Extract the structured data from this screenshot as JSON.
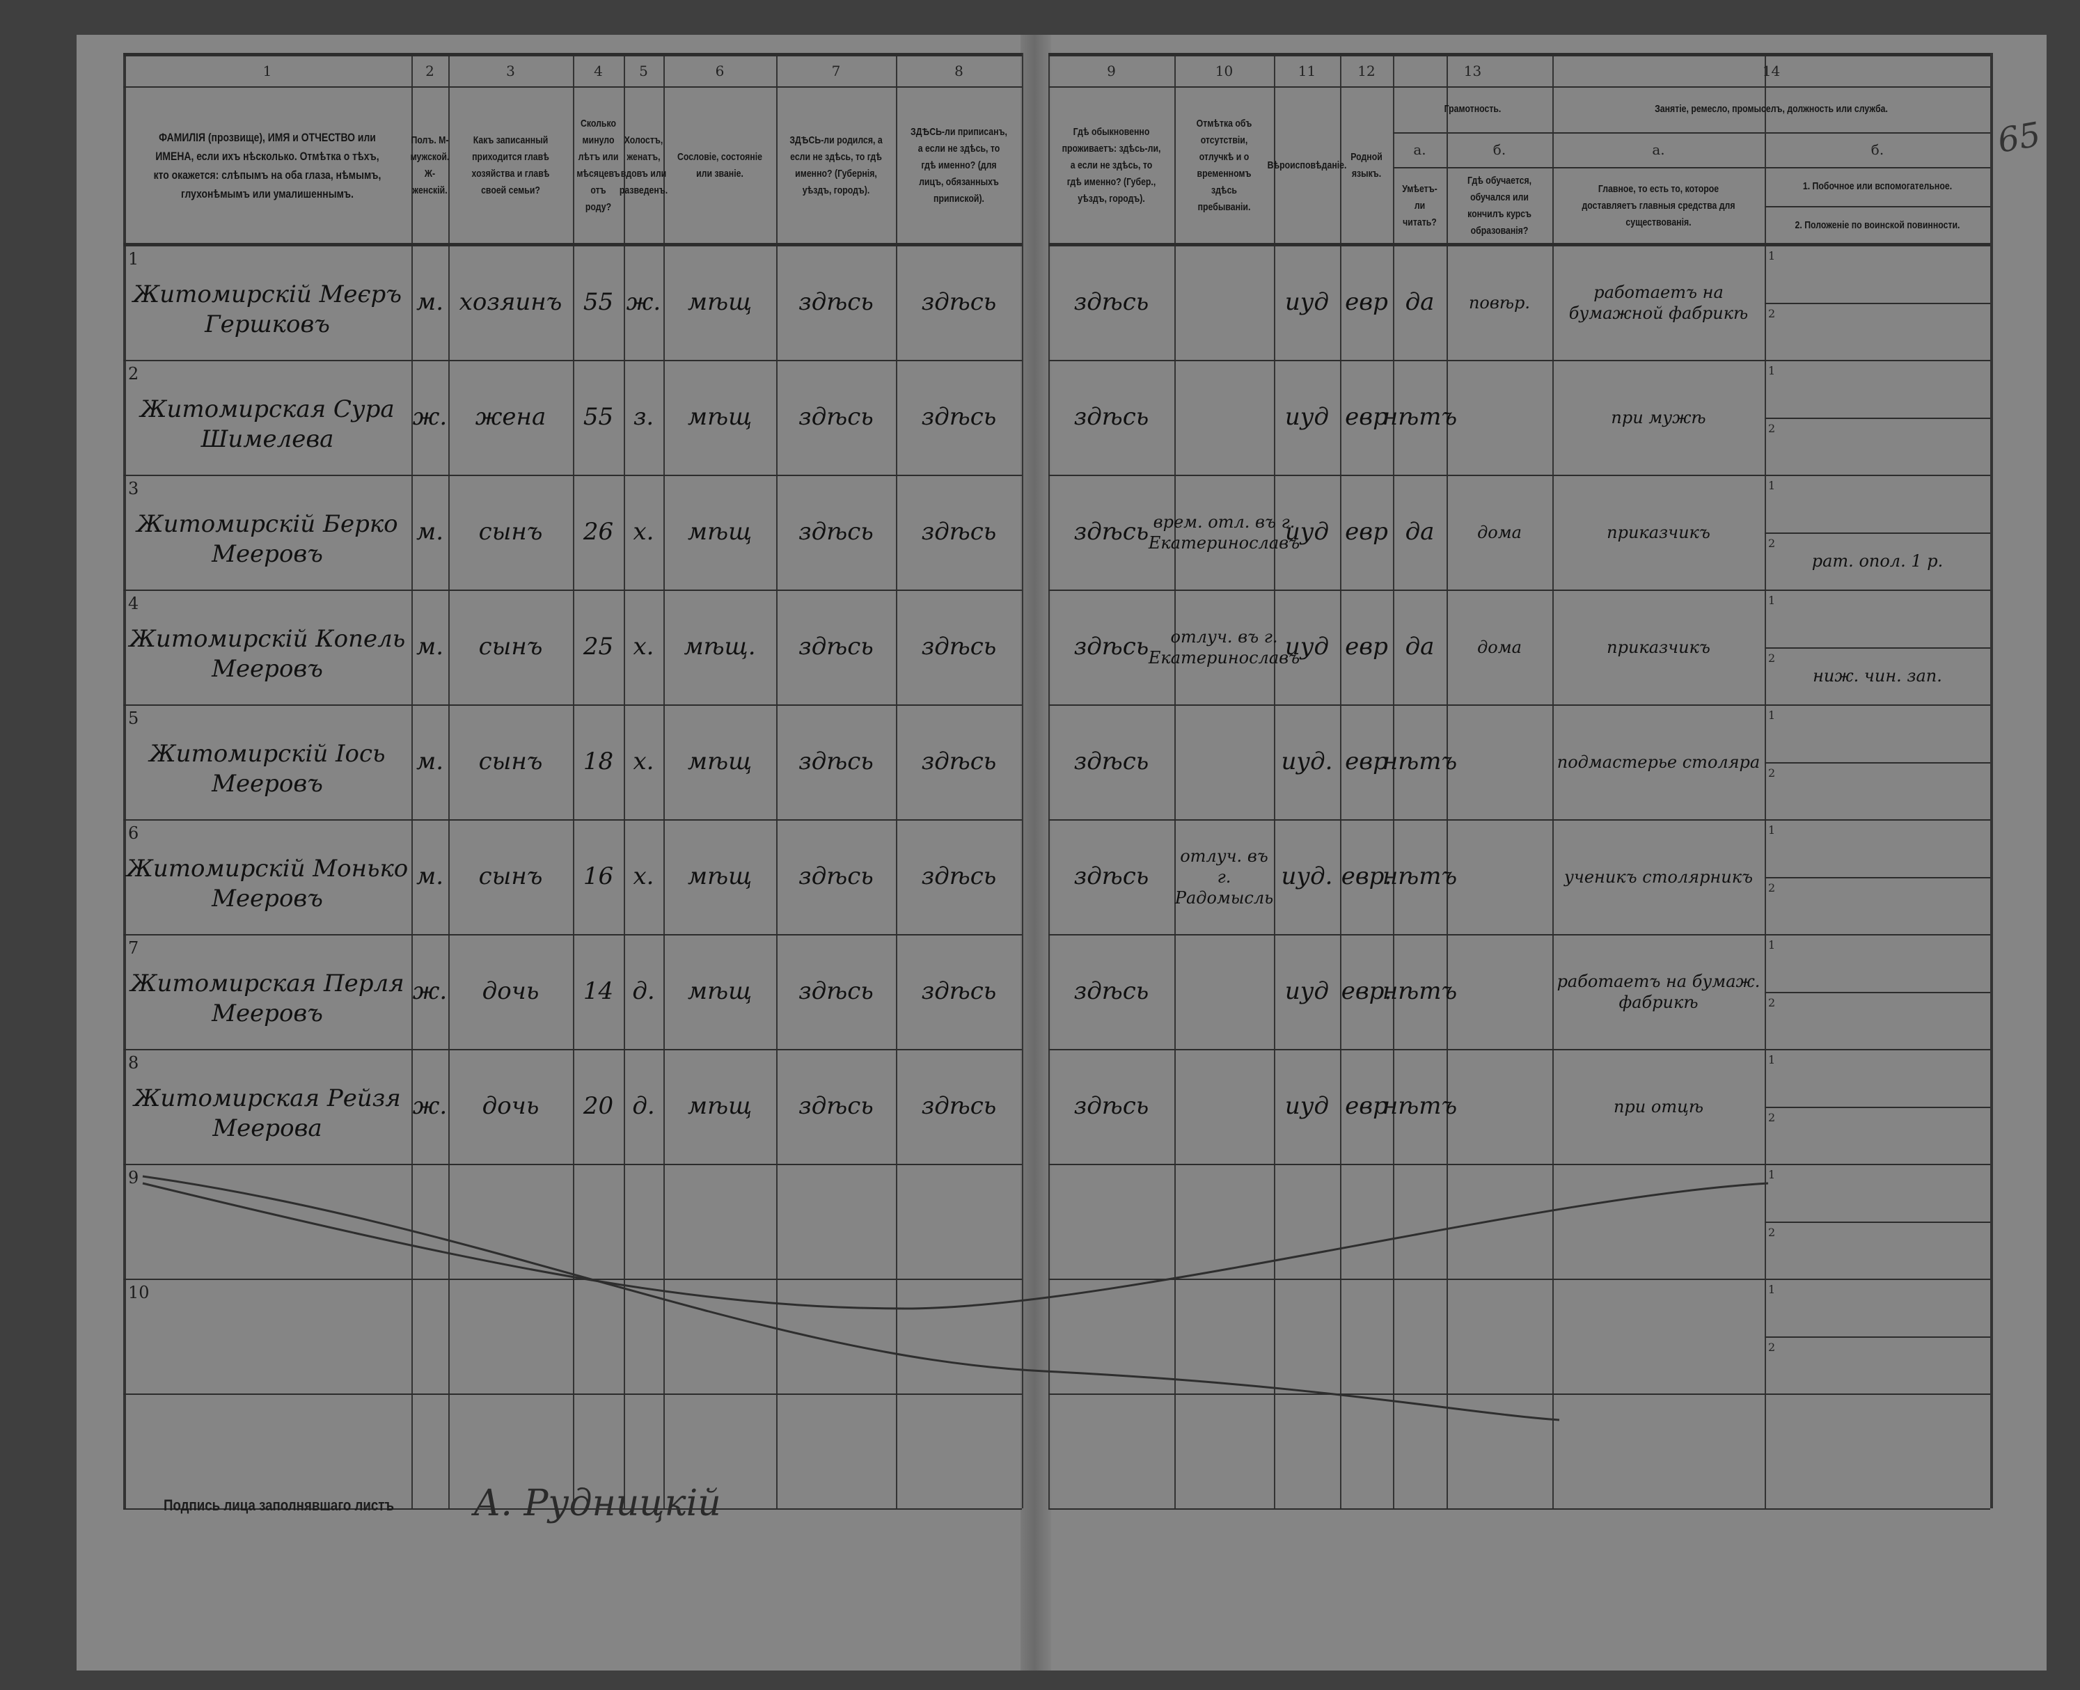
{
  "page_mark": "65",
  "column_numbers": {
    "c1": "1",
    "c2": "2",
    "c3": "3",
    "c4": "4",
    "c5": "5",
    "c6": "6",
    "c7": "7",
    "c8": "8",
    "c9": "9",
    "c10": "10",
    "c11": "11",
    "c12": "12",
    "c13": "13",
    "c14": "14"
  },
  "headers": {
    "c1": "ФАМИЛІЯ (прозвище), ИМЯ и ОТЧЕСТВО или ИМЕНА, если ихъ нѣсколько. Отмѣтка о тѣхъ, кто окажется: слѣпымъ на оба глаза, нѣмымъ, глухонѣмымъ или умалишеннымъ.",
    "c2": "Полъ. М-мужской. Ж-женскій.",
    "c3": "Какъ записанный приходится главѣ хозяйства и главѣ своей семьи?",
    "c4": "Сколько минуло лѣтъ или мѣсяцевъ отъ роду?",
    "c5": "Холостъ, женатъ, вдовъ или разведенъ.",
    "c6": "Сословіе, состояніе или званіе.",
    "c7": "ЗДѢСЬ-ли родился, а если не здѣсь, то гдѣ именно? (Губернія, уѣздъ, городъ).",
    "c8": "ЗДѢСЬ-ли приписанъ, а если не здѣсь, то гдѣ именно? (для лицъ, обязанныхъ припиской).",
    "c9": "Гдѣ обыкновенно проживаетъ: здѣсь-ли, а если не здѣсь, то гдѣ именно? (Губер., уѣздъ, городъ).",
    "c10": "Отмѣтка объ отсутствіи, отлучкѣ и о временномъ здѣсь пребываніи.",
    "c11": "Вѣроисповѣданіе.",
    "c12": "Родной языкъ.",
    "c13_title": "Грамотность.",
    "c13a_letter": "а.",
    "c13a": "Умѣетъ-ли читать?",
    "c13b_letter": "б.",
    "c13b": "Гдѣ обучается, обучался или кончилъ курсъ образованія?",
    "c14_title": "Занятіе, ремесло, промыселъ, должность или служба.",
    "c14a_letter": "а.",
    "c14a": "Главное, то есть то, которое доставляетъ главныя средства для существованія.",
    "c14b_letter": "б.",
    "c14b_1": "1. Побочное или вспомогательное.",
    "c14b_2": "2. Положеніе по воинской повинности."
  },
  "subline_labels": {
    "one": "1",
    "two": "2"
  },
  "rows": [
    {
      "n": "1",
      "c1": "Житомирскій Меєръ Гершковъ",
      "c2": "м.",
      "c3": "хозяинъ",
      "c4": "55",
      "c5": "ж.",
      "c6": "мѣщ",
      "c7": "здѣсь",
      "c8": "здѣсь",
      "c9": "здѣсь",
      "c10": "",
      "c11": "иуд",
      "c12": "евр",
      "c13a": "да",
      "c13b": "повѣр.",
      "c14a": "работаетъ на бумажной фабрикѣ",
      "c14b_1": "",
      "c14b_2": ""
    },
    {
      "n": "2",
      "c1": "Житомирская Сура Шимелева",
      "c2": "ж.",
      "c3": "жена",
      "c4": "55",
      "c5": "з.",
      "c6": "мѣщ",
      "c7": "здѣсь",
      "c8": "здѣсь",
      "c9": "здѣсь",
      "c10": "",
      "c11": "иуд",
      "c12": "евр",
      "c13a": "нѣтъ",
      "c13b": "",
      "c14a": "при мужѣ",
      "c14b_1": "",
      "c14b_2": ""
    },
    {
      "n": "3",
      "c1": "Житомирскій Берко Мееровъ",
      "c2": "м.",
      "c3": "сынъ",
      "c4": "26",
      "c5": "х.",
      "c6": "мѣщ",
      "c7": "здѣсь",
      "c8": "здѣсь",
      "c9": "здѣсь",
      "c10": "врем. отл. въ г. Екатеринославъ",
      "c11": "иуд",
      "c12": "евр",
      "c13a": "да",
      "c13b": "дома",
      "c14a": "приказчикъ",
      "c14b_1": "",
      "c14b_2": "рат. опол. 1 р."
    },
    {
      "n": "4",
      "c1": "Житомирскій Копель Мееровъ",
      "c2": "м.",
      "c3": "сынъ",
      "c4": "25",
      "c5": "х.",
      "c6": "мѣщ.",
      "c7": "здѣсь",
      "c8": "здѣсь",
      "c9": "здѣсь",
      "c10": "отлуч. въ г. Екатеринославъ",
      "c11": "иуд",
      "c12": "евр",
      "c13a": "да",
      "c13b": "дома",
      "c14a": "приказчикъ",
      "c14b_1": "",
      "c14b_2": "ниж. чин. зап."
    },
    {
      "n": "5",
      "c1": "Житомирскій Іось Мееровъ",
      "c2": "м.",
      "c3": "сынъ",
      "c4": "18",
      "c5": "х.",
      "c6": "мѣщ",
      "c7": "здѣсь",
      "c8": "здѣсь",
      "c9": "здѣсь",
      "c10": "",
      "c11": "иуд.",
      "c12": "евр",
      "c13a": "нѣтъ",
      "c13b": "",
      "c14a": "подмастерье столяра",
      "c14b_1": "",
      "c14b_2": ""
    },
    {
      "n": "6",
      "c1": "Житомирскій Монько Мееровъ",
      "c2": "м.",
      "c3": "сынъ",
      "c4": "16",
      "c5": "х.",
      "c6": "мѣщ",
      "c7": "здѣсь",
      "c8": "здѣсь",
      "c9": "здѣсь",
      "c10": "отлуч. въ г. Радомысль",
      "c11": "иуд.",
      "c12": "евр.",
      "c13a": "нѣтъ",
      "c13b": "",
      "c14a": "ученикъ столярникъ",
      "c14b_1": "",
      "c14b_2": ""
    },
    {
      "n": "7",
      "c1": "Житомирская Перля Мееровъ",
      "c2": "ж.",
      "c3": "дочь",
      "c4": "14",
      "c5": "д.",
      "c6": "мѣщ",
      "c7": "здѣсь",
      "c8": "здѣсь",
      "c9": "здѣсь",
      "c10": "",
      "c11": "иуд",
      "c12": "евр.",
      "c13a": "нѣтъ",
      "c13b": "",
      "c14a": "работаетъ на бумаж. фабрикѣ",
      "c14b_1": "",
      "c14b_2": ""
    },
    {
      "n": "8",
      "c1": "Житомирская Рейзя Меерова",
      "c2": "ж.",
      "c3": "дочь",
      "c4": "20",
      "c5": "д.",
      "c6": "мѣщ",
      "c7": "здѣсь",
      "c8": "здѣсь",
      "c9": "здѣсь",
      "c10": "",
      "c11": "иуд",
      "c12": "евр",
      "c13a": "нѣтъ",
      "c13b": "",
      "c14a": "при отцѣ",
      "c14b_1": "",
      "c14b_2": ""
    },
    {
      "n": "9"
    },
    {
      "n": "10"
    }
  ],
  "signature": {
    "label": "Подпись лица заполнявшаго листъ",
    "name": "А. Рудницкій"
  }
}
